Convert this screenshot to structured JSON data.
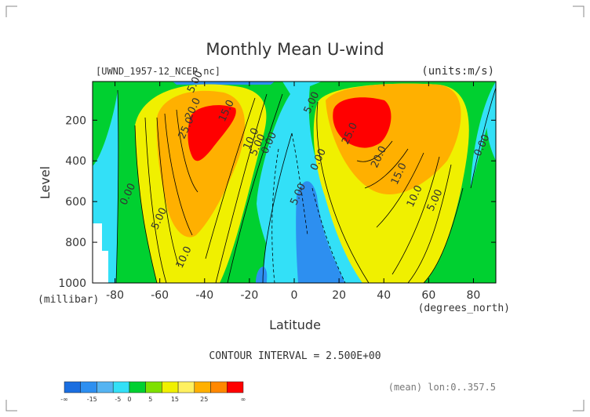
{
  "chart_data": {
    "type": "contour",
    "title": "Monthly Mean U-wind",
    "file_label": "[UWND_1957-12_NCEP.nc]",
    "units_label": "(units:m/s)",
    "xlabel": "Latitude",
    "xunit": "(degrees_north)",
    "ylabel": "Level",
    "yunit": "(millibar)",
    "xlim": [
      -90,
      90
    ],
    "ylim": [
      1000,
      10
    ],
    "x_ticks": [
      "-80",
      "-60",
      "-40",
      "-20",
      "0",
      "20",
      "40",
      "60",
      "80"
    ],
    "x_tick_values": [
      -80,
      -60,
      -40,
      -20,
      0,
      20,
      40,
      60,
      80
    ],
    "y_ticks": [
      "200",
      "400",
      "600",
      "800",
      "1000"
    ],
    "y_tick_values": [
      200,
      400,
      600,
      800,
      1000
    ],
    "contour_interval_text": "CONTOUR INTERVAL = 2.500E+00",
    "mean_text": "(mean) lon:0..357.5",
    "contour_labels": [
      {
        "text": "5.00",
        "x": -43,
        "y": 18
      },
      {
        "text": "20.0",
        "x": -44,
        "y": 150
      },
      {
        "text": "15.0",
        "x": -29,
        "y": 160
      },
      {
        "text": "25.0",
        "x": -47,
        "y": 245
      },
      {
        "text": "10.0",
        "x": -18,
        "y": 298
      },
      {
        "text": "5.00",
        "x": -15,
        "y": 328
      },
      {
        "text": "0.00",
        "x": -10,
        "y": 318
      },
      {
        "text": "5.00",
        "x": 9,
        "y": 120
      },
      {
        "text": "0.00",
        "x": 12,
        "y": 400
      },
      {
        "text": "25.0",
        "x": 26,
        "y": 272
      },
      {
        "text": "20.0",
        "x": 39,
        "y": 387
      },
      {
        "text": "15.0",
        "x": 48,
        "y": 470
      },
      {
        "text": "10.0",
        "x": 55,
        "y": 580
      },
      {
        "text": "5.00",
        "x": 64,
        "y": 600
      },
      {
        "text": "0.00",
        "x": 85,
        "y": 330
      },
      {
        "text": "0.00",
        "x": -73,
        "y": 570
      },
      {
        "text": "5.00",
        "x": -59,
        "y": 690
      },
      {
        "text": "10.0",
        "x": -48,
        "y": 880
      },
      {
        "text": "5.00",
        "x": 3,
        "y": 570
      }
    ],
    "colorbar": {
      "tick_labels": [
        "-∞",
        "-15",
        "-5",
        "0",
        "5",
        "15",
        "25",
        "∞"
      ],
      "colors": [
        "#1a6ee0",
        "#2d8ff0",
        "#55b4f2",
        "#33e0f7",
        "#00d030",
        "#7ee000",
        "#f0f000",
        "#fff060",
        "#ffb000",
        "#ff8800",
        "#ff0000"
      ]
    },
    "regions": [
      {
        "level": 0,
        "color": "#33e0f7"
      },
      {
        "level": 5,
        "color": "#00d030"
      },
      {
        "level": 10,
        "color": "#f0f000"
      },
      {
        "level": 15,
        "color": "#ffb000"
      },
      {
        "level": 20,
        "color": "#ff8800"
      },
      {
        "level": 25,
        "color": "#ff0000"
      },
      {
        "level": -5,
        "color": "#2d8ff0"
      }
    ]
  }
}
